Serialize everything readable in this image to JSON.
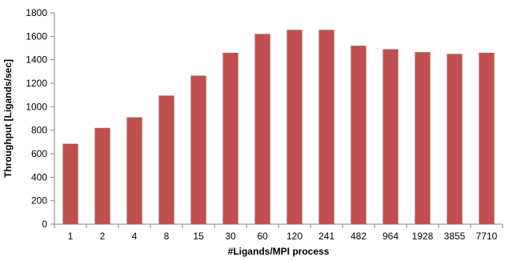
{
  "chart_data": {
    "type": "bar",
    "title": "",
    "xlabel": "#Ligands/MPI process",
    "ylabel": "Throughput [Ligands/sec]",
    "categories": [
      "1",
      "2",
      "4",
      "8",
      "15",
      "30",
      "60",
      "120",
      "241",
      "482",
      "964",
      "1928",
      "3855",
      "7710"
    ],
    "values": [
      685,
      820,
      910,
      1095,
      1265,
      1460,
      1620,
      1655,
      1655,
      1520,
      1490,
      1465,
      1450,
      1460
    ],
    "ylim": [
      0,
      1800
    ],
    "yticks": [
      0,
      200,
      400,
      600,
      800,
      1000,
      1200,
      1400,
      1600,
      1800
    ],
    "grid": false,
    "legend": "none",
    "bar_color": "#c0504d",
    "axis_color": "#808080"
  }
}
